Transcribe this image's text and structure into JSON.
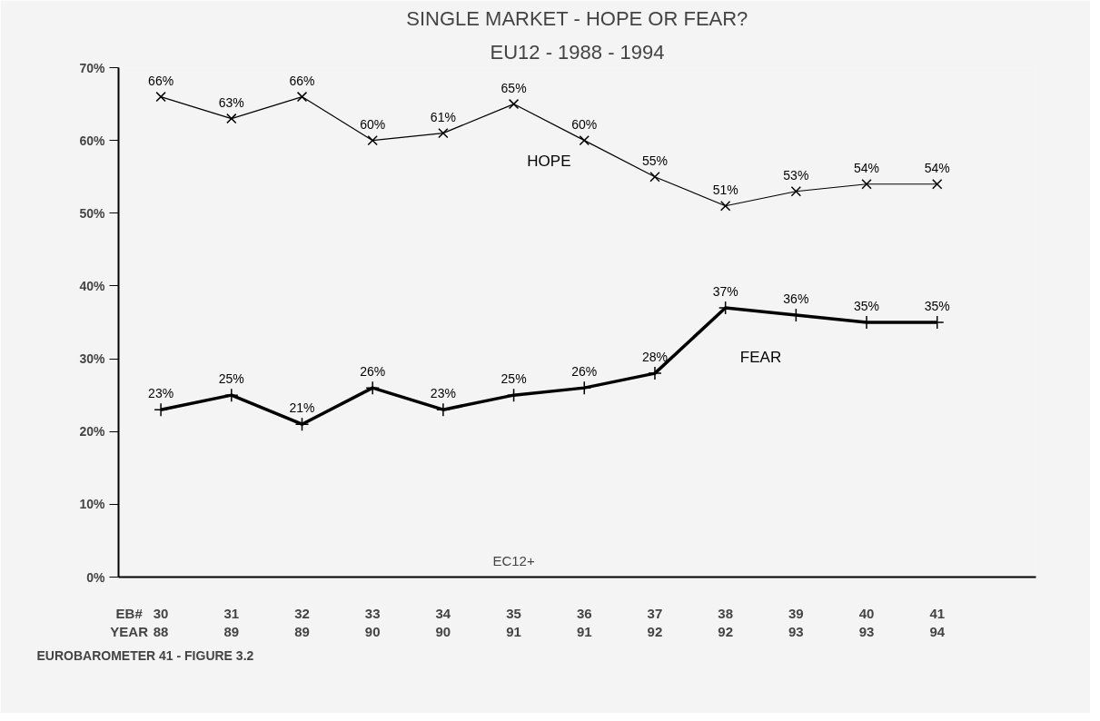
{
  "chart_data": {
    "type": "line",
    "title": "SINGLE MARKET - HOPE OR FEAR?",
    "subtitle": "EU12 - 1988 - 1994",
    "categories": [
      "30\n88",
      "31\n89",
      "32\n89",
      "33\n90",
      "34\n90",
      "35\n91",
      "36\n91",
      "37\n92",
      "38\n92",
      "39\n93",
      "40\n93",
      "41\n94"
    ],
    "series": [
      {
        "name": "HOPE",
        "color": "#000000",
        "marker": "x",
        "values": [
          66,
          63,
          66,
          60,
          61,
          65,
          60,
          55,
          51,
          53,
          54,
          54
        ],
        "value_labels": [
          "66%",
          "63%",
          "66%",
          "60%",
          "61%",
          "65%",
          "60%",
          "55%",
          "51%",
          "53%",
          "54%",
          "54%"
        ]
      },
      {
        "name": "FEAR",
        "color": "#000000",
        "marker": "cross",
        "values": [
          23,
          25,
          21,
          26,
          23,
          25,
          26,
          28,
          37,
          36,
          35,
          35
        ],
        "value_labels": [
          "23%",
          "25%",
          "21%",
          "26%",
          "23%",
          "25%",
          "26%",
          "28%",
          "37%",
          "36%",
          "35%",
          "35%"
        ]
      }
    ],
    "ylim": [
      0,
      70
    ],
    "yticks": [
      {
        "value": 0,
        "label": "0%"
      },
      {
        "value": 10,
        "label": "10%"
      },
      {
        "value": 20,
        "label": "20%"
      },
      {
        "value": 30,
        "label": "30%"
      },
      {
        "value": 40,
        "label": "40%"
      },
      {
        "value": 50,
        "label": "50%"
      },
      {
        "value": 60,
        "label": "60%"
      },
      {
        "value": 70,
        "label": "70%"
      }
    ],
    "annotations": [
      "EB#\nYEAR",
      "EC12+",
      "EUROBAROMETER 41 - FIGURE 3.2"
    ],
    "grid": false,
    "line_style": "solid"
  }
}
